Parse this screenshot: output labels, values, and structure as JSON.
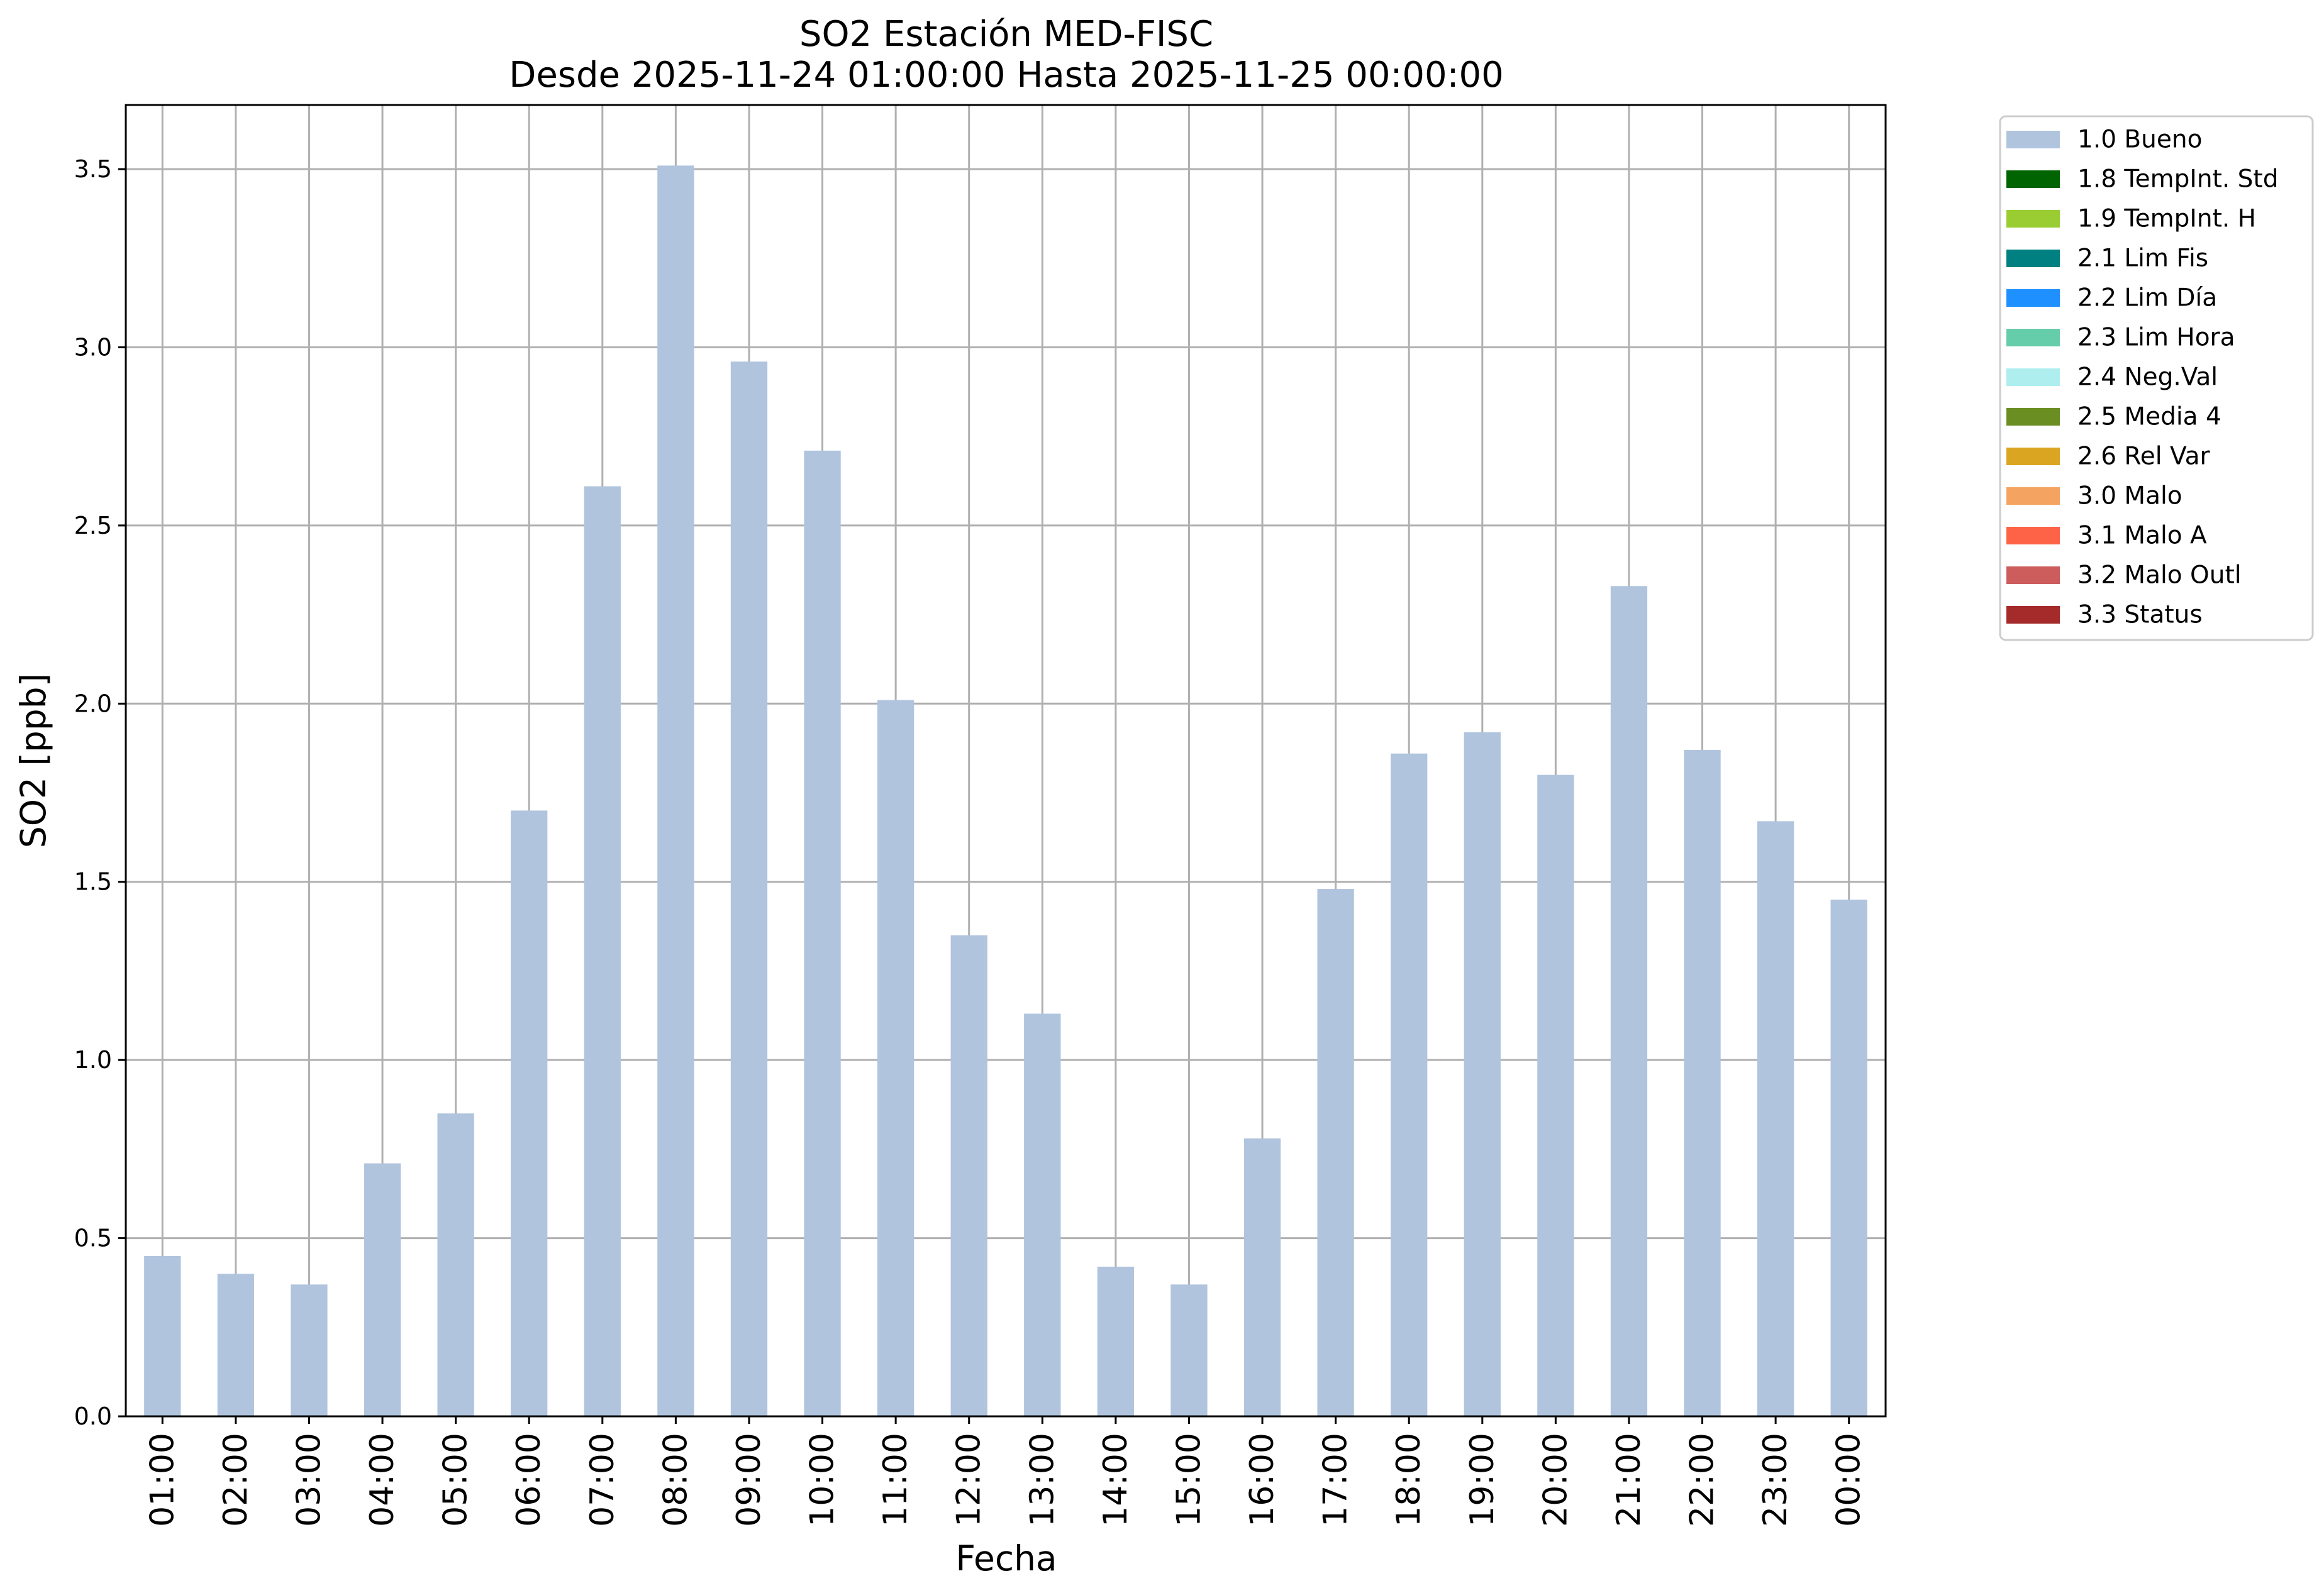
{
  "chart_data": {
    "type": "bar",
    "title": "SO2 Estación MED-FISC",
    "subtitle": "Desde 2025-11-24 01:00:00 Hasta 2025-11-25 00:00:00",
    "xlabel": "Fecha",
    "ylabel": "SO2 [ppb]",
    "ylim": [
      0,
      3.68
    ],
    "yticks": [
      "0.0",
      "0.5",
      "1.0",
      "1.5",
      "2.0",
      "2.5",
      "3.0",
      "3.5"
    ],
    "grid": true,
    "legend_position": "outside-top-right",
    "categories": [
      "01:00",
      "02:00",
      "03:00",
      "04:00",
      "05:00",
      "06:00",
      "07:00",
      "08:00",
      "09:00",
      "10:00",
      "11:00",
      "12:00",
      "13:00",
      "14:00",
      "15:00",
      "16:00",
      "17:00",
      "18:00",
      "19:00",
      "20:00",
      "21:00",
      "22:00",
      "23:00",
      "00:00"
    ],
    "series": [
      {
        "name": "1.0 Bueno",
        "color": "#b0c4de",
        "values": [
          0.45,
          0.4,
          0.37,
          0.71,
          0.85,
          1.7,
          2.61,
          3.51,
          2.96,
          2.71,
          2.01,
          1.35,
          1.13,
          0.42,
          0.37,
          0.78,
          1.48,
          1.86,
          1.92,
          1.8,
          2.33,
          1.87,
          1.67,
          1.45
        ]
      }
    ],
    "legend": [
      {
        "label": "1.0 Bueno",
        "color": "#b0c4de"
      },
      {
        "label": "1.8 TempInt. Std",
        "color": "#006400"
      },
      {
        "label": "1.9 TempInt. H",
        "color": "#9acd32"
      },
      {
        "label": "2.1 Lim Fis",
        "color": "#008080"
      },
      {
        "label": "2.2 Lim Día",
        "color": "#1e90ff"
      },
      {
        "label": "2.3 Lim Hora",
        "color": "#66cdaa"
      },
      {
        "label": "2.4 Neg.Val",
        "color": "#afeeee"
      },
      {
        "label": "2.5 Media 4",
        "color": "#6b8e23"
      },
      {
        "label": "2.6 Rel Var",
        "color": "#daa520"
      },
      {
        "label": "3.0 Malo",
        "color": "#f4a460"
      },
      {
        "label": "3.1 Malo A",
        "color": "#ff6347"
      },
      {
        "label": "3.2 Malo Outl",
        "color": "#cd5c5c"
      },
      {
        "label": "3.3 Status",
        "color": "#a52a2a"
      }
    ]
  }
}
